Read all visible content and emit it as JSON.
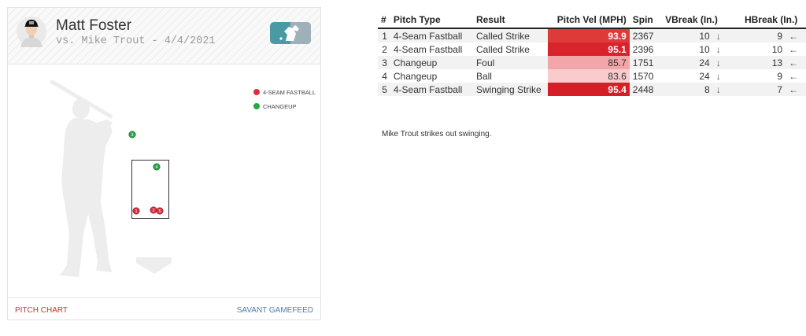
{
  "header": {
    "player_name": "Matt Foster",
    "matchup": "vs. Mike Trout - 4/4/2021"
  },
  "legend": [
    {
      "label": "4-SEAM FASTBALL",
      "color": "#d9303f"
    },
    {
      "label": "CHANGEUP",
      "color": "#28a745"
    }
  ],
  "pitch_markers": [
    {
      "label": "1",
      "pitch_type": "4-Seam Fastball",
      "color": "#d9303f"
    },
    {
      "label": "2",
      "pitch_type": "4-Seam Fastball",
      "color": "#d9303f"
    },
    {
      "label": "3",
      "pitch_type": "Changeup",
      "color": "#28a745"
    },
    {
      "label": "4",
      "pitch_type": "Changeup",
      "color": "#28a745"
    },
    {
      "label": "5",
      "pitch_type": "4-Seam Fastball",
      "color": "#d9303f"
    }
  ],
  "footer": {
    "left_link": "PITCH CHART",
    "right_link": "SAVANT GAMEFEED"
  },
  "table": {
    "headers": [
      "#",
      "Pitch Type",
      "Result",
      "Pitch Vel (MPH)",
      "Spin",
      "VBreak (In.)",
      "HBreak (In.)"
    ],
    "rows": [
      {
        "num": "1",
        "type": "4-Seam Fastball",
        "result": "Called Strike",
        "vel": "93.9",
        "vel_color": "#de3a3a",
        "spin": "2367",
        "vbreak": "10",
        "vdir": "↓",
        "hbreak": "9",
        "hdir": "←"
      },
      {
        "num": "2",
        "type": "4-Seam Fastball",
        "result": "Called Strike",
        "vel": "95.1",
        "vel_color": "#d7232b",
        "spin": "2396",
        "vbreak": "10",
        "vdir": "↓",
        "hbreak": "10",
        "hdir": "←"
      },
      {
        "num": "3",
        "type": "Changeup",
        "result": "Foul",
        "vel": "85.7",
        "vel_color": "#f2a6aa",
        "spin": "1751",
        "vbreak": "24",
        "vdir": "↓",
        "hbreak": "13",
        "hdir": "←"
      },
      {
        "num": "4",
        "type": "Changeup",
        "result": "Ball",
        "vel": "83.6",
        "vel_color": "#f9cbcd",
        "spin": "1570",
        "vbreak": "24",
        "vdir": "↓",
        "hbreak": "9",
        "hdir": "←"
      },
      {
        "num": "5",
        "type": "4-Seam Fastball",
        "result": "Swinging Strike",
        "vel": "95.4",
        "vel_color": "#d51f27",
        "spin": "2448",
        "vbreak": "8",
        "vdir": "↓",
        "hbreak": "7",
        "hdir": "←"
      }
    ]
  },
  "summary": "Mike Trout strikes out swinging."
}
